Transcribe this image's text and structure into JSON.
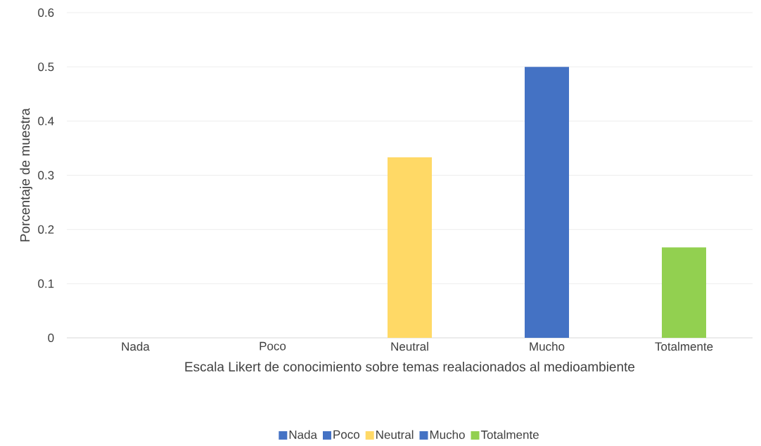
{
  "chart_data": {
    "type": "bar",
    "categories": [
      "Nada",
      "Poco",
      "Neutral",
      "Mucho",
      "Totalmente"
    ],
    "series": [
      {
        "name": "Nada",
        "color": "#4472c4",
        "values": [
          0,
          null,
          null,
          null,
          null
        ]
      },
      {
        "name": "Poco",
        "color": "#4472c4",
        "values": [
          null,
          0,
          null,
          null,
          null
        ]
      },
      {
        "name": "Neutral",
        "color": "#ffd966",
        "values": [
          null,
          null,
          0.333,
          null,
          null
        ]
      },
      {
        "name": "Mucho",
        "color": "#4472c4",
        "values": [
          null,
          null,
          null,
          0.5,
          null
        ]
      },
      {
        "name": "Totalmente",
        "color": "#92d050",
        "values": [
          null,
          null,
          null,
          null,
          0.167
        ]
      }
    ],
    "xlabel": "Escala Likert de conocimiento sobre temas realacionados al medioambiente",
    "ylabel": "Porcentaje de muestra",
    "ylim": [
      0,
      0.6
    ],
    "yticks": [
      0,
      0.1,
      0.2,
      0.3,
      0.4,
      0.5,
      0.6
    ],
    "grid": "y",
    "legend": "bottom"
  }
}
